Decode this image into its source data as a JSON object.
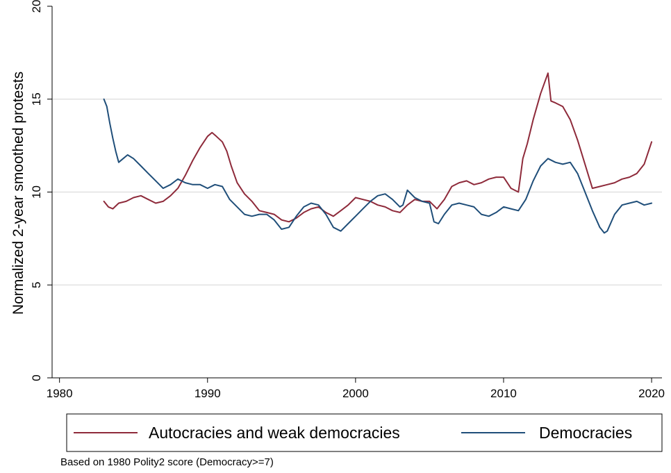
{
  "chart_data": {
    "type": "line",
    "title": "",
    "xlabel": "",
    "ylabel": "Normalized 2-year smoothed protests",
    "xlim": [
      1979.5,
      2020.7
    ],
    "ylim": [
      0,
      20
    ],
    "xticks": [
      1980,
      1990,
      2000,
      2010,
      2020
    ],
    "xtick_labels": [
      "1980",
      "1990",
      "2000",
      "2010",
      "2020"
    ],
    "yticks": [
      0,
      5,
      10,
      15,
      20
    ],
    "ytick_labels": [
      "0",
      "5",
      "10",
      "15",
      "20"
    ],
    "grid": "horizontal",
    "legend_position": "bottom",
    "note": "Based on 1980 Polity2 score (Democracy>=7)",
    "series": [
      {
        "name": "Autocracies and weak democracies",
        "color": "#8e2a3a",
        "x": [
          1983.0,
          1983.3,
          1983.6,
          1984.0,
          1984.5,
          1985.0,
          1985.5,
          1986.0,
          1986.5,
          1987.0,
          1987.5,
          1988.0,
          1988.5,
          1989.0,
          1989.5,
          1990.0,
          1990.3,
          1990.6,
          1991.0,
          1991.3,
          1991.6,
          1992.0,
          1992.5,
          1993.0,
          1993.5,
          1994.0,
          1994.5,
          1995.0,
          1995.5,
          1996.0,
          1996.5,
          1997.0,
          1997.5,
          1998.0,
          1998.5,
          1999.0,
          1999.5,
          2000.0,
          2000.5,
          2001.0,
          2001.5,
          2002.0,
          2002.5,
          2003.0,
          2003.5,
          2004.0,
          2004.5,
          2005.0,
          2005.5,
          2006.0,
          2006.5,
          2007.0,
          2007.5,
          2008.0,
          2008.5,
          2009.0,
          2009.5,
          2010.0,
          2010.5,
          2011.0,
          2011.3,
          2011.6,
          2012.0,
          2012.5,
          2013.0,
          2013.2,
          2013.5,
          2014.0,
          2014.5,
          2015.0,
          2015.5,
          2016.0,
          2016.5,
          2017.0,
          2017.5,
          2018.0,
          2018.5,
          2019.0,
          2019.5,
          2020.0
        ],
        "y": [
          9.5,
          9.2,
          9.1,
          9.4,
          9.5,
          9.7,
          9.8,
          9.6,
          9.4,
          9.5,
          9.8,
          10.2,
          10.9,
          11.7,
          12.4,
          13.0,
          13.2,
          13.0,
          12.7,
          12.2,
          11.4,
          10.5,
          9.9,
          9.5,
          9.0,
          8.9,
          8.8,
          8.5,
          8.4,
          8.6,
          8.9,
          9.1,
          9.2,
          8.9,
          8.7,
          9.0,
          9.3,
          9.7,
          9.6,
          9.5,
          9.3,
          9.2,
          9.0,
          8.9,
          9.3,
          9.6,
          9.5,
          9.5,
          9.1,
          9.6,
          10.3,
          10.5,
          10.6,
          10.4,
          10.5,
          10.7,
          10.8,
          10.8,
          10.2,
          10.0,
          11.8,
          12.6,
          13.9,
          15.3,
          16.4,
          14.9,
          14.8,
          14.6,
          13.9,
          12.8,
          11.5,
          10.2,
          10.3,
          10.4,
          10.5,
          10.7,
          10.8,
          11.0,
          11.5,
          12.7
        ]
      },
      {
        "name": "Democracies",
        "color": "#1f4e79",
        "x": [
          1983.0,
          1983.2,
          1983.4,
          1983.6,
          1983.8,
          1984.0,
          1984.3,
          1984.6,
          1985.0,
          1985.5,
          1986.0,
          1986.5,
          1987.0,
          1987.5,
          1988.0,
          1988.5,
          1989.0,
          1989.5,
          1990.0,
          1990.5,
          1991.0,
          1991.5,
          1992.0,
          1992.5,
          1993.0,
          1993.5,
          1994.0,
          1994.5,
          1995.0,
          1995.5,
          1996.0,
          1996.5,
          1997.0,
          1997.5,
          1998.0,
          1998.5,
          1999.0,
          1999.5,
          2000.0,
          2000.5,
          2001.0,
          2001.5,
          2002.0,
          2002.5,
          2003.0,
          2003.2,
          2003.5,
          2004.0,
          2004.5,
          2005.0,
          2005.3,
          2005.6,
          2006.0,
          2006.5,
          2007.0,
          2007.5,
          2008.0,
          2008.5,
          2009.0,
          2009.5,
          2010.0,
          2010.5,
          2011.0,
          2011.5,
          2012.0,
          2012.5,
          2013.0,
          2013.5,
          2014.0,
          2014.5,
          2015.0,
          2015.5,
          2016.0,
          2016.5,
          2016.8,
          2017.0,
          2017.5,
          2018.0,
          2018.5,
          2019.0,
          2019.5,
          2020.0
        ],
        "y": [
          15.0,
          14.6,
          13.7,
          12.9,
          12.2,
          11.6,
          11.8,
          12.0,
          11.8,
          11.4,
          11.0,
          10.6,
          10.2,
          10.4,
          10.7,
          10.5,
          10.4,
          10.4,
          10.2,
          10.4,
          10.3,
          9.6,
          9.2,
          8.8,
          8.7,
          8.8,
          8.8,
          8.5,
          8.0,
          8.1,
          8.7,
          9.2,
          9.4,
          9.3,
          8.8,
          8.1,
          7.9,
          8.3,
          8.7,
          9.1,
          9.5,
          9.8,
          9.9,
          9.6,
          9.2,
          9.3,
          10.1,
          9.7,
          9.5,
          9.4,
          8.4,
          8.3,
          8.8,
          9.3,
          9.4,
          9.3,
          9.2,
          8.8,
          8.7,
          8.9,
          9.2,
          9.1,
          9.0,
          9.6,
          10.6,
          11.4,
          11.8,
          11.6,
          11.5,
          11.6,
          11.0,
          10.0,
          9.0,
          8.1,
          7.8,
          7.9,
          8.8,
          9.3,
          9.4,
          9.5,
          9.3,
          9.4
        ]
      }
    ]
  }
}
